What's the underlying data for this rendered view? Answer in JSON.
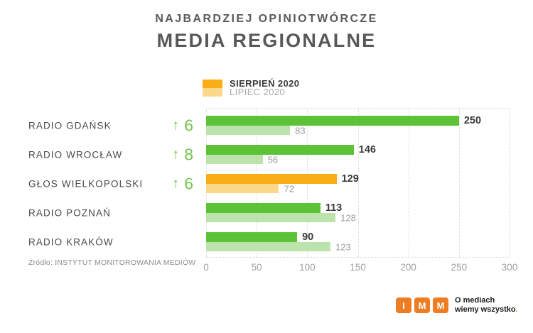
{
  "header": {
    "title_line1": "NAJBARDZIEJ OPINIOTWÓRCZE",
    "title_line2": "MEDIA REGIONALNE"
  },
  "legend": {
    "august_label": "SIERPIEŃ 2020",
    "july_label": "LIPIEC 2020"
  },
  "icons": {
    "up_arrow": "↑"
  },
  "colors": {
    "green": "#5bc335",
    "green_light": "#bce3ab",
    "orange": "#f9ae17",
    "orange_light": "#fcd88a",
    "arrow_green": "#74c351",
    "title_gray": "#58595b",
    "imm_orange": "#ee7c22"
  },
  "chart_data": {
    "type": "bar",
    "orientation": "horizontal",
    "title": "NAJBARDZIEJ OPINIOTWÓRCZE MEDIA REGIONALNE",
    "series_names": [
      "SIERPIEŃ 2020",
      "LIPIEC 2020"
    ],
    "xmax": 300,
    "xticks": [
      0,
      50,
      100,
      150,
      200,
      250,
      300
    ],
    "grid": "vertical-dotted",
    "legend_position": "top-center",
    "rows": [
      {
        "label": "RADIO GDAŃSK",
        "change": "6",
        "august": 250,
        "july": 83,
        "color": "green"
      },
      {
        "label": "RADIO WROCŁAW",
        "change": "8",
        "august": 146,
        "july": 56,
        "color": "green"
      },
      {
        "label": "GŁOS WIELKOPOLSKI",
        "change": "6",
        "august": 129,
        "july": 72,
        "color": "orange"
      },
      {
        "label": "RADIO POZNAŃ",
        "change": null,
        "august": 113,
        "july": 128,
        "color": "green"
      },
      {
        "label": "RADIO KRAKÓW",
        "change": null,
        "august": 90,
        "july": 123,
        "color": "green"
      }
    ]
  },
  "source_note": "Źródło: INSTYTUT MONITOROWANIA MEDIÓW",
  "logo": {
    "letters": [
      "I",
      "M",
      "M"
    ],
    "tagline_line1": "O mediach",
    "tagline_line2": "wiemy wszystko",
    "tagline_period": "."
  }
}
